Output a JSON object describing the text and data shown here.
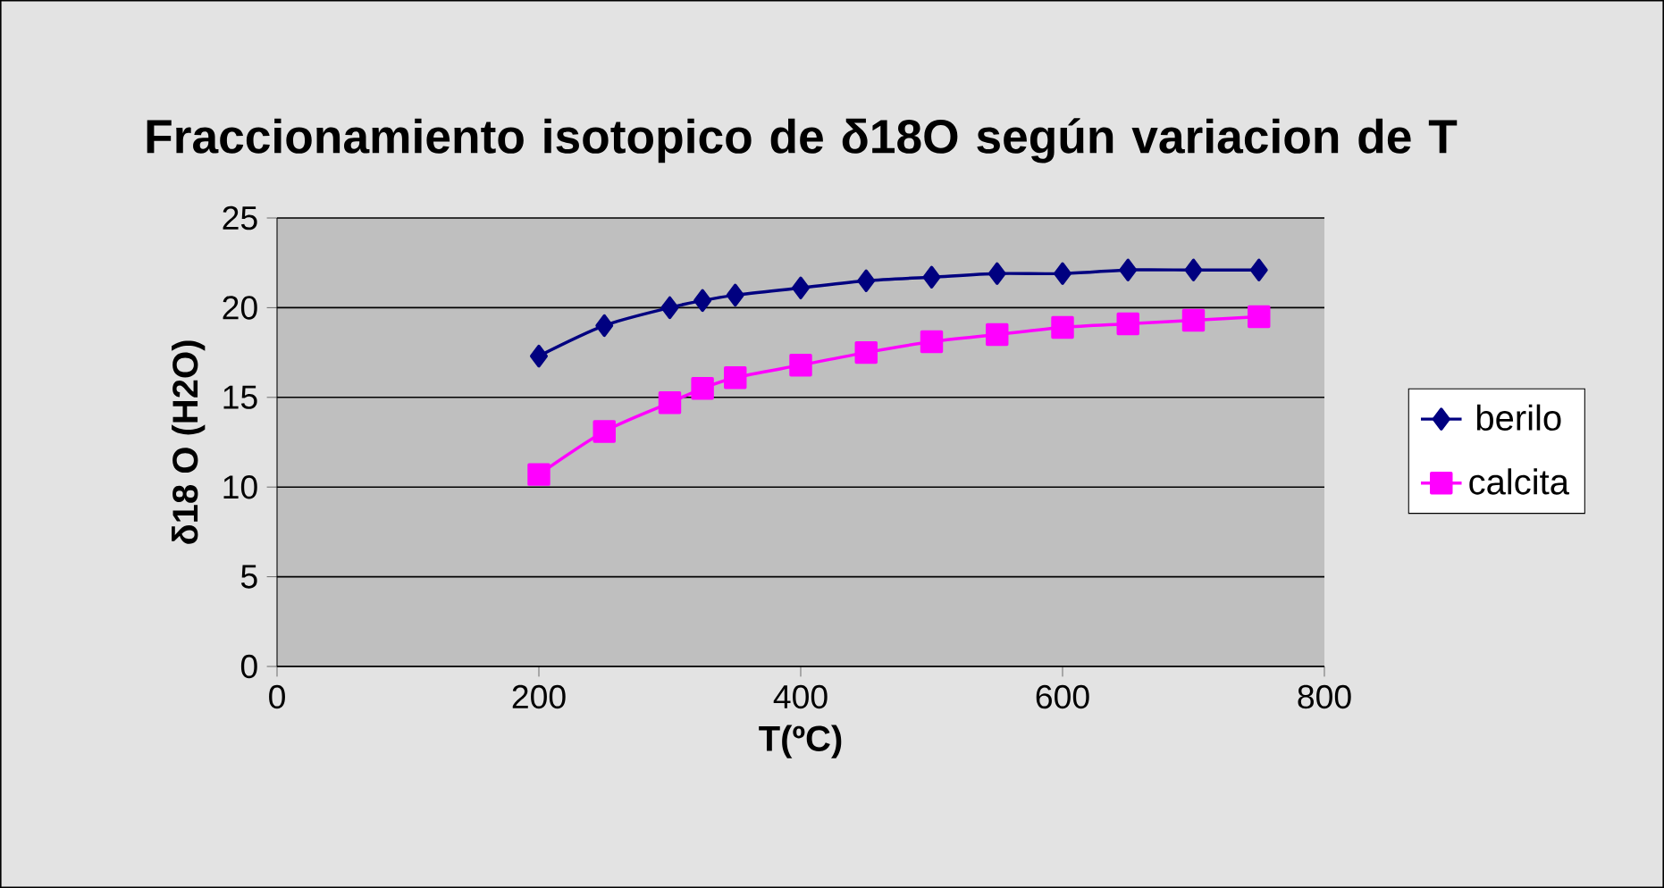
{
  "chart_data": {
    "type": "line",
    "title": "Fraccionamiento isotopico  de δ18O según variacion de T",
    "xlabel": "T(ºC)",
    "ylabel": "δ18 O (H2O)",
    "x": [
      200,
      250,
      300,
      325,
      350,
      400,
      450,
      500,
      550,
      600,
      650,
      700,
      750
    ],
    "series": [
      {
        "name": "berilo",
        "color": "#000080",
        "marker": "diamond",
        "values": [
          17.3,
          19.0,
          20.0,
          20.4,
          20.7,
          21.1,
          21.5,
          21.7,
          21.9,
          21.9,
          22.1,
          22.1,
          22.1
        ]
      },
      {
        "name": "calcita",
        "color": "#ff00ff",
        "marker": "square",
        "values": [
          10.7,
          13.1,
          14.7,
          15.5,
          16.1,
          16.8,
          17.5,
          18.1,
          18.5,
          18.9,
          19.1,
          19.3,
          19.5
        ]
      }
    ],
    "xlim": [
      0,
      800
    ],
    "xticks": [
      0,
      200,
      400,
      600,
      800
    ],
    "ylim": [
      0,
      25
    ],
    "yticks": [
      0,
      5,
      10,
      15,
      20,
      25
    ],
    "grid": "y",
    "legend": "right",
    "line_style": "solid"
  }
}
